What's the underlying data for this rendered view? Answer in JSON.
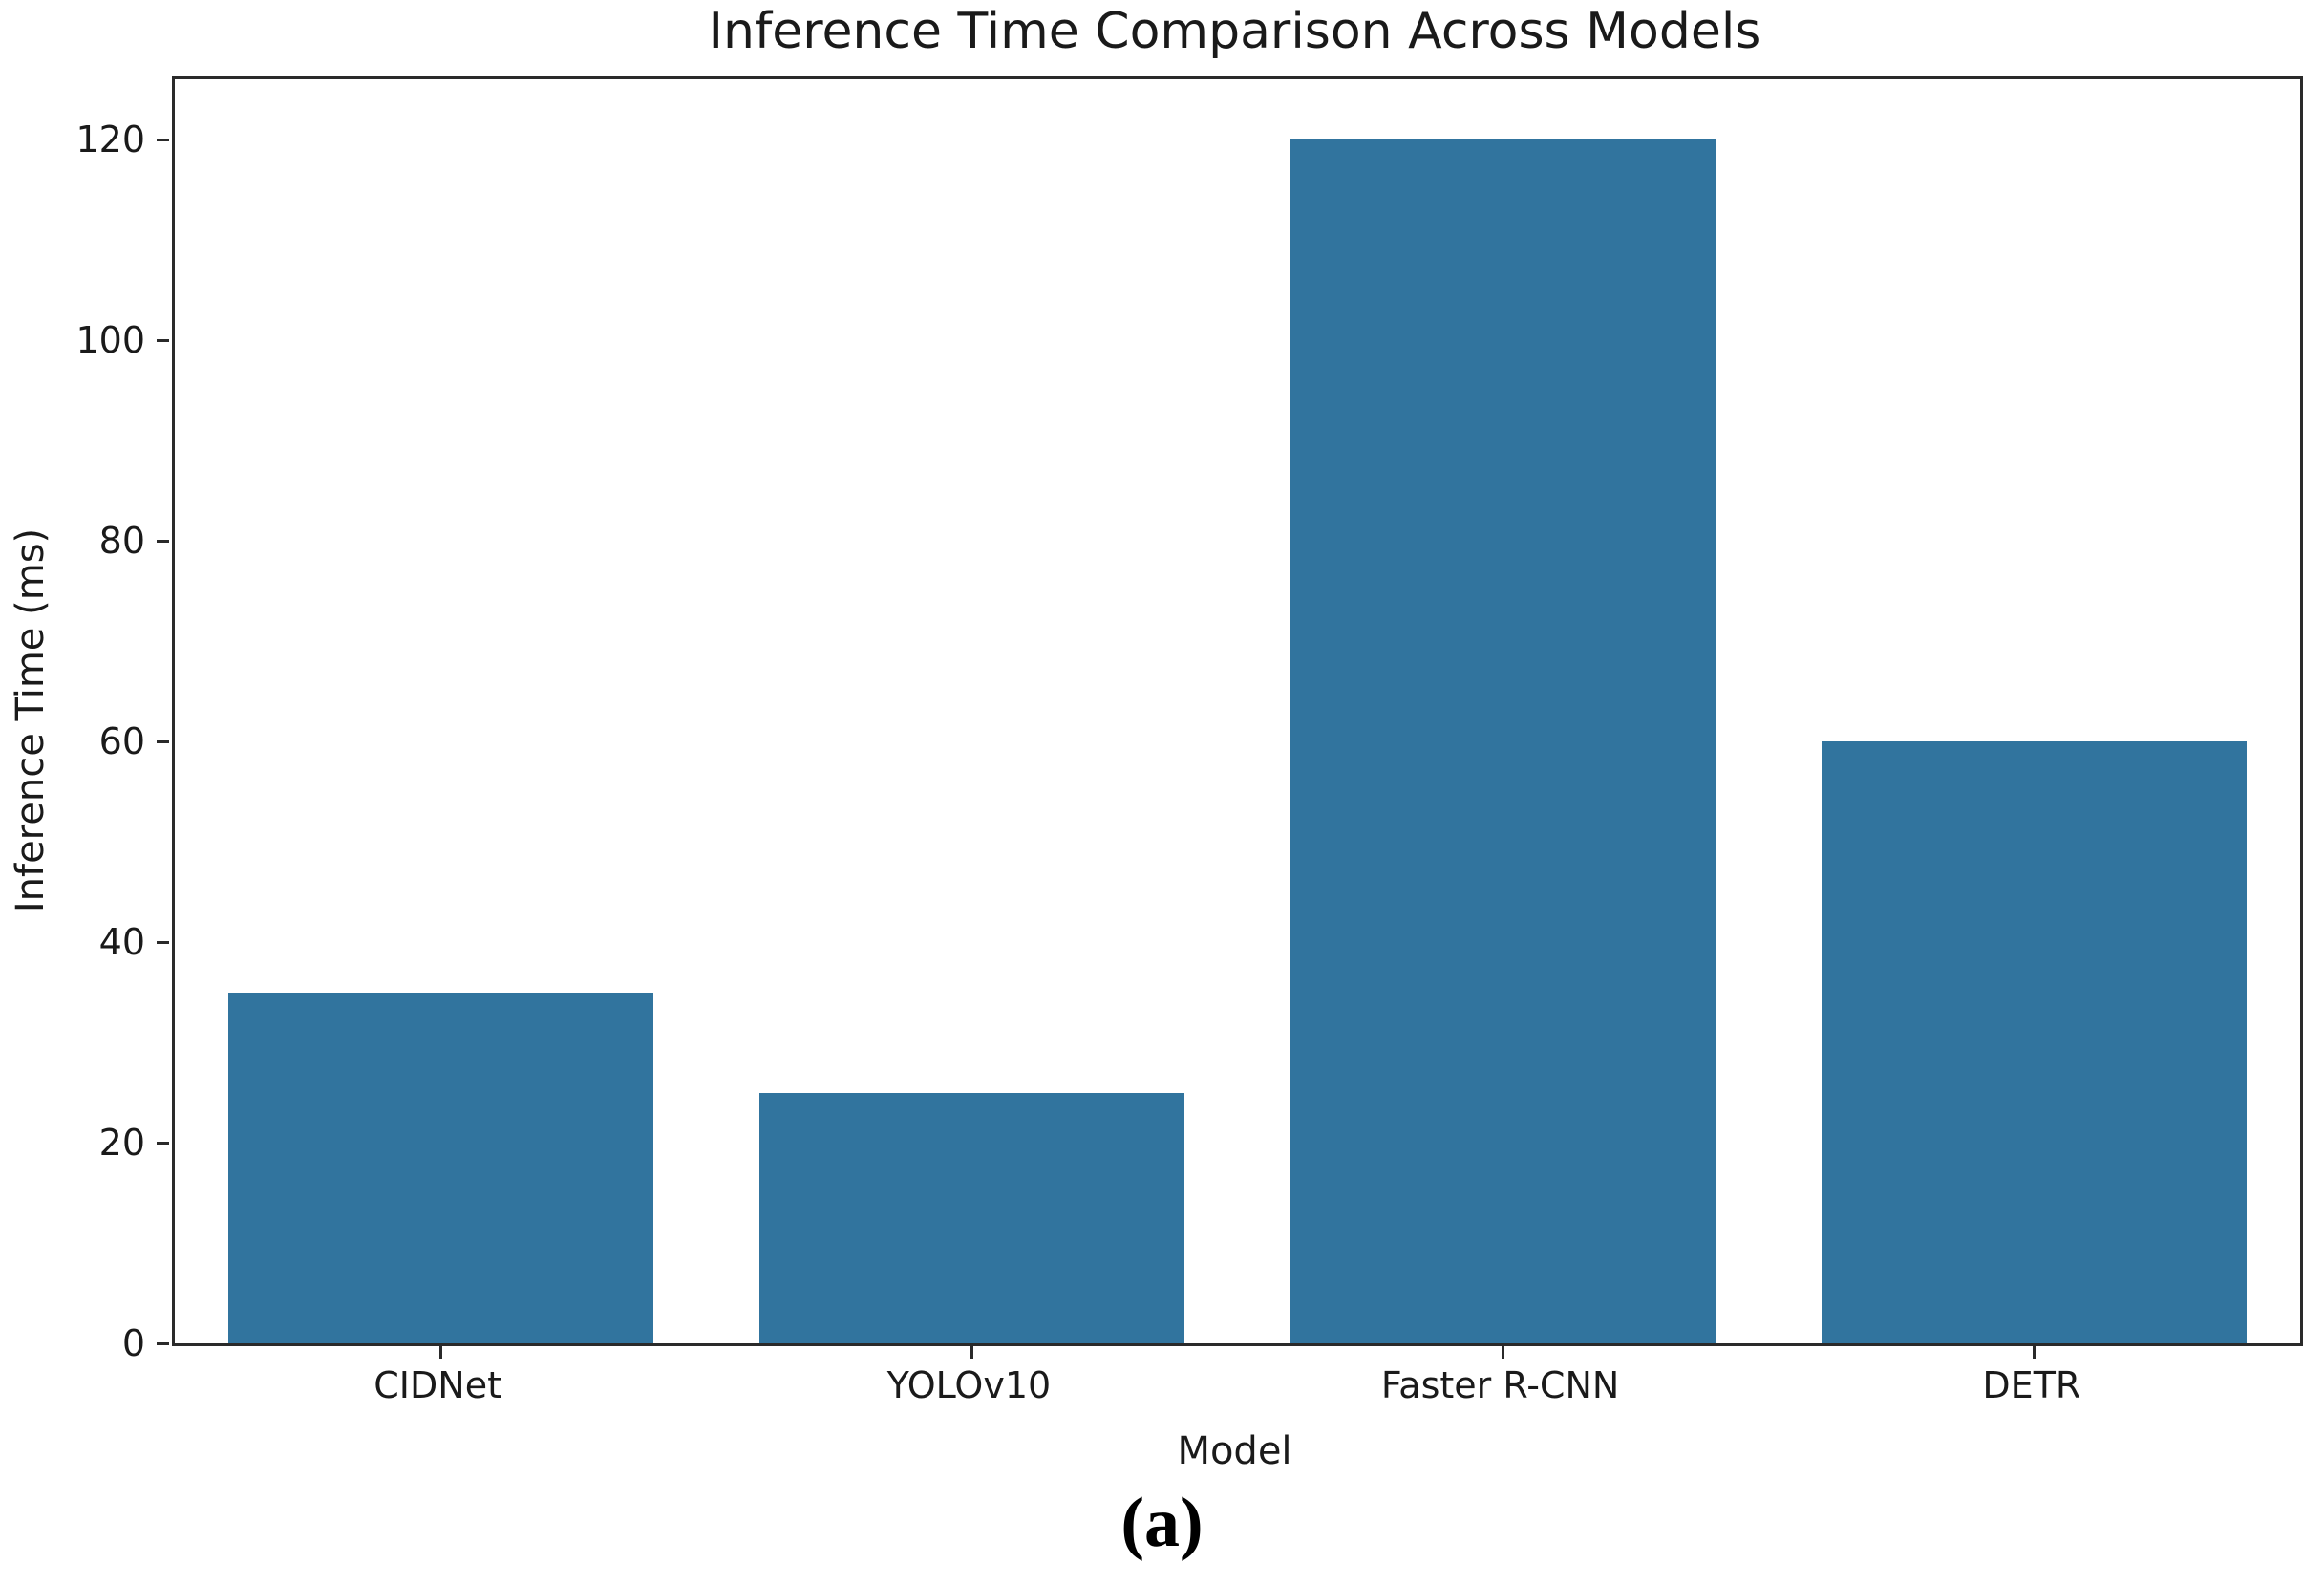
{
  "figure": {
    "caption": "(a)"
  },
  "chart_data": {
    "type": "bar",
    "title": "Inference Time Comparison Across Models",
    "xlabel": "Model",
    "ylabel": "Inference Time (ms)",
    "categories": [
      "CIDNet",
      "YOLOv10",
      "Faster R-CNN",
      "DETR"
    ],
    "values": [
      35,
      25,
      120,
      60
    ],
    "yticks": [
      0,
      20,
      40,
      60,
      80,
      100,
      120
    ],
    "ylim": [
      0,
      126
    ],
    "bar_width_fraction": 0.8,
    "bar_color": "#31749E",
    "grid": false,
    "legend_position": "none"
  }
}
